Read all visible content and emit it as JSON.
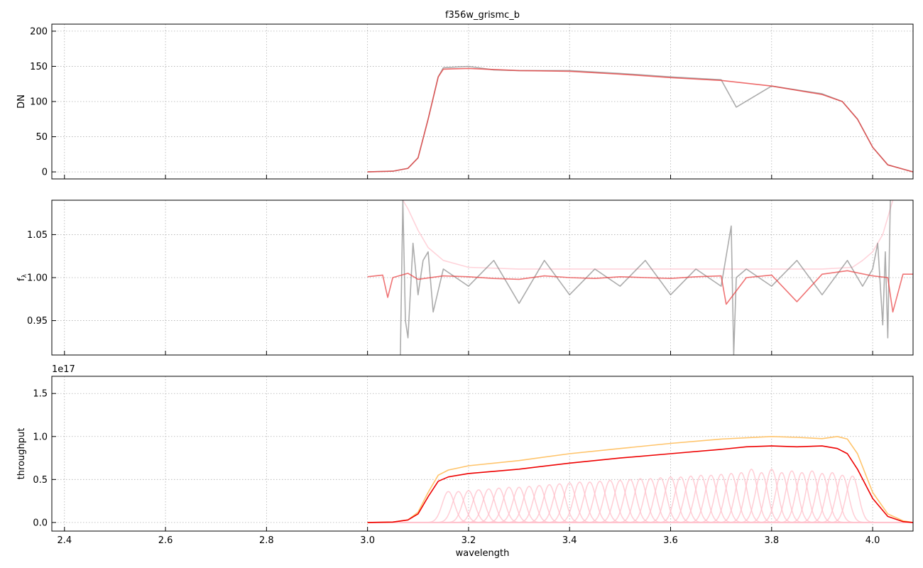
{
  "chart_data": [
    {
      "type": "line",
      "title": "f356w_grismc_b",
      "xlabel": "",
      "ylabel": "DN",
      "xlim": [
        2.375,
        4.08
      ],
      "ylim": [
        -10,
        210
      ],
      "xticks": [
        2.4,
        2.6,
        2.8,
        3.0,
        3.2,
        3.4,
        3.6,
        3.8,
        4.0
      ],
      "yticks": [
        0,
        50,
        100,
        150,
        200
      ],
      "ytick_labels": [
        "0",
        "50",
        "100",
        "150",
        "200"
      ],
      "grid": true,
      "series": [
        {
          "color": "#808080",
          "opacity": 0.65,
          "x": [
            3.0,
            3.05,
            3.08,
            3.1,
            3.12,
            3.14,
            3.15,
            3.2,
            3.25,
            3.3,
            3.4,
            3.5,
            3.6,
            3.7,
            3.73,
            3.8,
            3.9,
            3.94,
            3.97,
            4.0,
            4.03,
            4.08
          ],
          "y": [
            0,
            1,
            5,
            20,
            75,
            135,
            148,
            150,
            145,
            144,
            144,
            140,
            135,
            131,
            92,
            122,
            111,
            100,
            75,
            35,
            10,
            0
          ]
        },
        {
          "color": "#e8393a",
          "opacity": 0.75,
          "x": [
            3.0,
            3.05,
            3.08,
            3.1,
            3.12,
            3.14,
            3.15,
            3.2,
            3.3,
            3.4,
            3.5,
            3.6,
            3.7,
            3.8,
            3.9,
            3.94,
            3.97,
            4.0,
            4.03,
            4.08
          ],
          "y": [
            0,
            1,
            5,
            20,
            75,
            135,
            146,
            147,
            144,
            143,
            139,
            134,
            130,
            122,
            110,
            100,
            75,
            35,
            10,
            0
          ]
        }
      ]
    },
    {
      "type": "line",
      "title": "",
      "xlabel": "",
      "ylabel": "f_λ",
      "xlim": [
        2.375,
        4.08
      ],
      "ylim": [
        0.91,
        1.09
      ],
      "xticks": [
        2.4,
        2.6,
        2.8,
        3.0,
        3.2,
        3.4,
        3.6,
        3.8,
        4.0
      ],
      "yticks": [
        0.95,
        1.0,
        1.05
      ],
      "ytick_labels": [
        "0.95",
        "1.00",
        "1.05"
      ],
      "grid": true,
      "series": [
        {
          "color": "#ffc0cb",
          "opacity": 0.7,
          "x": [
            3.07,
            3.08,
            3.1,
            3.12,
            3.15,
            3.2,
            3.3,
            3.5,
            3.7,
            3.9,
            3.96,
            3.98,
            4.0,
            4.02,
            4.03,
            4.04
          ],
          "y": [
            1.09,
            1.08,
            1.055,
            1.035,
            1.02,
            1.012,
            1.01,
            1.01,
            1.01,
            1.01,
            1.012,
            1.02,
            1.03,
            1.05,
            1.07,
            1.09
          ]
        },
        {
          "color": "#808080",
          "opacity": 0.65,
          "x": [
            3.065,
            3.07,
            3.075,
            3.08,
            3.09,
            3.1,
            3.11,
            3.12,
            3.13,
            3.15,
            3.2,
            3.25,
            3.3,
            3.35,
            3.4,
            3.45,
            3.5,
            3.55,
            3.6,
            3.65,
            3.7,
            3.72,
            3.725,
            3.73,
            3.75,
            3.8,
            3.85,
            3.9,
            3.95,
            3.98,
            4.0,
            4.01,
            4.02,
            4.025,
            4.03,
            4.035
          ],
          "y": [
            0.91,
            1.09,
            0.95,
            0.93,
            1.04,
            0.98,
            1.02,
            1.03,
            0.96,
            1.01,
            0.99,
            1.02,
            0.97,
            1.02,
            0.98,
            1.01,
            0.99,
            1.02,
            0.98,
            1.01,
            0.99,
            1.06,
            0.91,
            1.0,
            1.01,
            0.99,
            1.02,
            0.98,
            1.02,
            0.99,
            1.01,
            1.04,
            0.945,
            1.03,
            0.93,
            1.09
          ]
        },
        {
          "color": "#e8393a",
          "opacity": 0.7,
          "x": [
            3.0,
            3.03,
            3.04,
            3.05,
            3.08,
            3.1,
            3.15,
            3.2,
            3.25,
            3.3,
            3.35,
            3.4,
            3.45,
            3.5,
            3.55,
            3.6,
            3.65,
            3.7,
            3.71,
            3.75,
            3.8,
            3.85,
            3.9,
            3.95,
            4.0,
            4.03,
            4.04,
            4.06,
            4.08
          ],
          "y": [
            1.001,
            1.003,
            0.977,
            1.0,
            1.005,
            0.998,
            1.002,
            1.001,
            0.999,
            0.998,
            1.002,
            1.0,
            0.999,
            1.001,
            1.0,
            0.999,
            1.001,
            1.002,
            0.969,
            1.0,
            1.003,
            0.972,
            1.004,
            1.008,
            1.002,
            1.0,
            0.96,
            1.004,
            1.004
          ]
        }
      ]
    },
    {
      "type": "line",
      "title": "",
      "xlabel": "wavelength",
      "ylabel": "throughput",
      "offset_label": "1e17",
      "xlim": [
        2.375,
        4.08
      ],
      "ylim": [
        -0.1,
        1.7
      ],
      "xticks": [
        2.4,
        2.6,
        2.8,
        3.0,
        3.2,
        3.4,
        3.6,
        3.8,
        4.0
      ],
      "xtick_labels": [
        "2.4",
        "2.6",
        "2.8",
        "3.0",
        "3.2",
        "3.4",
        "3.6",
        "3.8",
        "4.0"
      ],
      "yticks": [
        0.0,
        0.5,
        1.0,
        1.5
      ],
      "ytick_labels": [
        "0.0",
        "0.5",
        "1.0",
        "1.5"
      ],
      "grid": true,
      "series": [
        {
          "color": "#ffc46b",
          "opacity": 1,
          "x": [
            3.0,
            3.05,
            3.08,
            3.1,
            3.12,
            3.14,
            3.16,
            3.2,
            3.3,
            3.4,
            3.5,
            3.6,
            3.7,
            3.8,
            3.85,
            3.9,
            3.93,
            3.95,
            3.97,
            4.0,
            4.03,
            4.06,
            4.08
          ],
          "y": [
            0.0,
            0.005,
            0.03,
            0.12,
            0.35,
            0.55,
            0.61,
            0.66,
            0.72,
            0.8,
            0.86,
            0.92,
            0.97,
            1.0,
            0.99,
            0.975,
            1.0,
            0.97,
            0.8,
            0.35,
            0.1,
            0.02,
            0.0
          ]
        },
        {
          "color": "#ee0000",
          "opacity": 1,
          "x": [
            3.0,
            3.05,
            3.08,
            3.1,
            3.12,
            3.14,
            3.16,
            3.2,
            3.3,
            3.4,
            3.5,
            3.6,
            3.7,
            3.75,
            3.8,
            3.85,
            3.9,
            3.93,
            3.95,
            3.97,
            4.0,
            4.03,
            4.06,
            4.08
          ],
          "y": [
            0.0,
            0.005,
            0.03,
            0.1,
            0.3,
            0.48,
            0.53,
            0.57,
            0.62,
            0.69,
            0.75,
            0.8,
            0.85,
            0.88,
            0.89,
            0.88,
            0.89,
            0.86,
            0.8,
            0.62,
            0.28,
            0.07,
            0.01,
            0.0
          ]
        }
      ],
      "component_curves": {
        "color": "#ffc0cb",
        "centers": [
          3.16,
          3.18,
          3.2,
          3.22,
          3.24,
          3.26,
          3.28,
          3.3,
          3.32,
          3.34,
          3.36,
          3.38,
          3.4,
          3.42,
          3.44,
          3.46,
          3.48,
          3.5,
          3.52,
          3.54,
          3.56,
          3.58,
          3.6,
          3.62,
          3.64,
          3.66,
          3.68,
          3.7,
          3.72,
          3.74,
          3.76,
          3.78,
          3.8,
          3.82,
          3.84,
          3.86,
          3.88,
          3.9,
          3.92,
          3.94,
          3.96
        ],
        "peaks": [
          0.36,
          0.36,
          0.37,
          0.38,
          0.39,
          0.4,
          0.41,
          0.41,
          0.42,
          0.43,
          0.44,
          0.45,
          0.46,
          0.47,
          0.47,
          0.48,
          0.49,
          0.49,
          0.5,
          0.51,
          0.51,
          0.52,
          0.53,
          0.53,
          0.54,
          0.55,
          0.55,
          0.56,
          0.57,
          0.58,
          0.62,
          0.58,
          0.62,
          0.58,
          0.6,
          0.58,
          0.6,
          0.57,
          0.58,
          0.55,
          0.54
        ],
        "width": 0.012
      }
    }
  ]
}
